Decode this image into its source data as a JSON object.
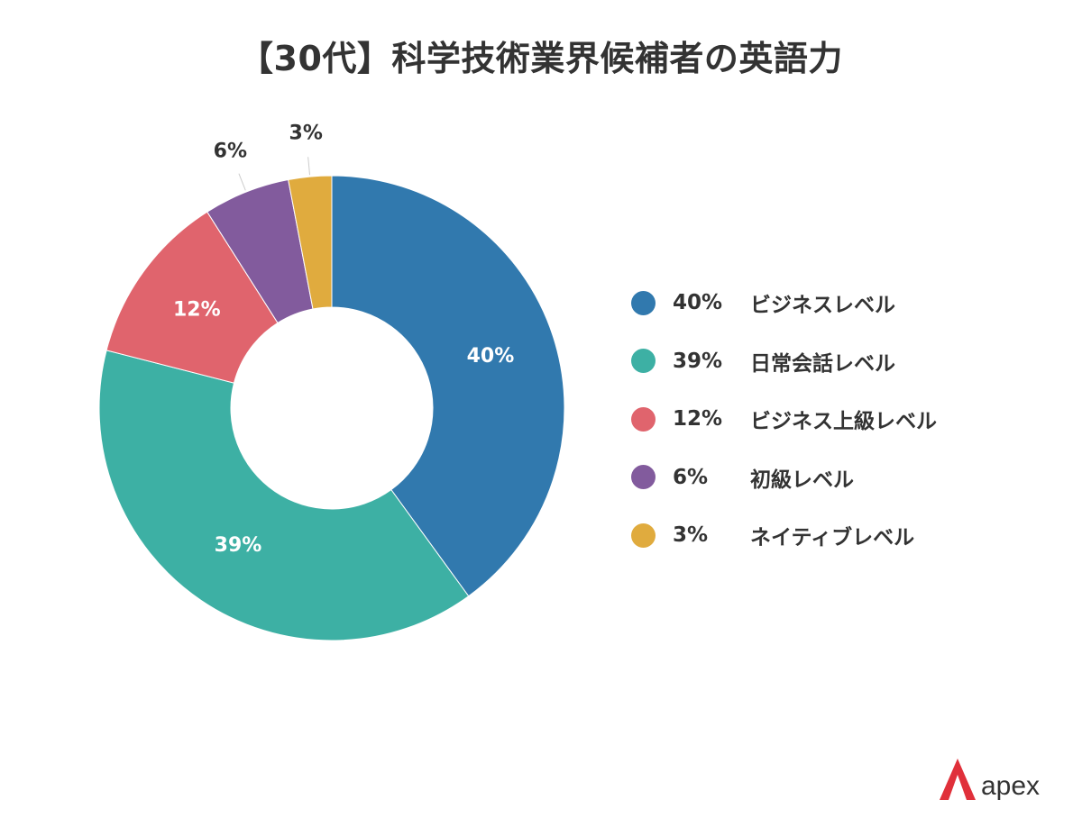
{
  "title": "【30代】科学技術業界候補者の英語力",
  "chart_data": {
    "type": "pie",
    "donut": true,
    "title": "【30代】科学技術業界候補者の英語力",
    "slices": [
      {
        "label": "ビジネスレベル",
        "value": 40,
        "pct_text": "40%",
        "color": "#3179ae",
        "label_placement": "inside"
      },
      {
        "label": "日常会話レベル",
        "value": 39,
        "pct_text": "39%",
        "color": "#3db0a4",
        "label_placement": "inside"
      },
      {
        "label": "ビジネス上級レベル",
        "value": 12,
        "pct_text": "12%",
        "color": "#e0646d",
        "label_placement": "inside"
      },
      {
        "label": "初級レベル",
        "value": 6,
        "pct_text": "6%",
        "color": "#825b9d",
        "label_placement": "outside"
      },
      {
        "label": "ネイティブレベル",
        "value": 3,
        "pct_text": "3%",
        "color": "#e0ab3e",
        "label_placement": "outside"
      }
    ],
    "legend_position": "right"
  },
  "logo": {
    "text": "apex",
    "color": "#e0303a"
  }
}
